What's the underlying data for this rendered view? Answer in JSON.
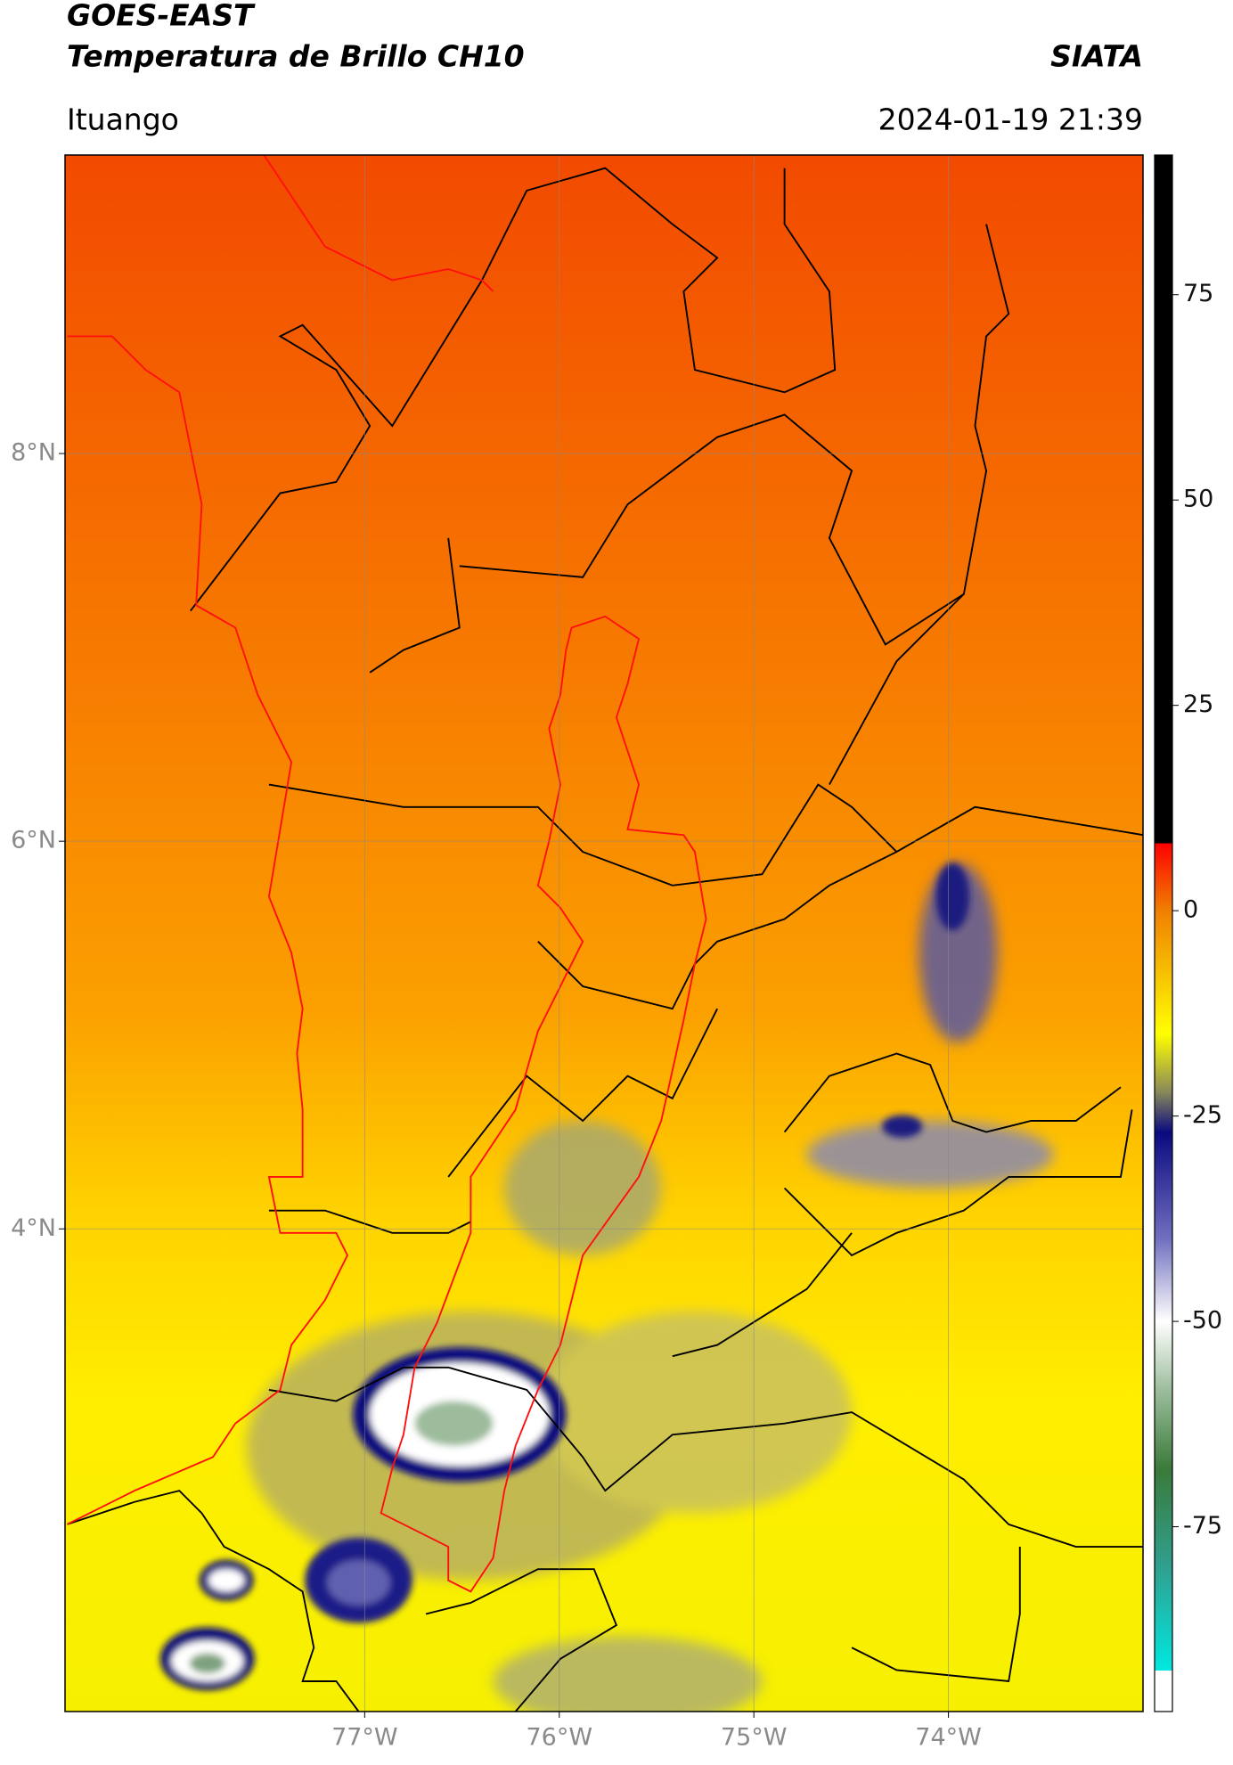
{
  "header": {
    "title": "GOES-EAST",
    "subtitle": "Temperatura de Brillo CH10",
    "source": "SIATA",
    "location": "Ituango",
    "timestamp": "2024-01-19 21:39"
  },
  "map": {
    "xlim": [
      -78.54,
      -73.0
    ],
    "ylim": [
      1.51,
      9.54
    ],
    "xticks": [
      {
        "value": -77,
        "label": "77°W"
      },
      {
        "value": -76,
        "label": "76°W"
      },
      {
        "value": -75,
        "label": "75°W"
      },
      {
        "value": -74,
        "label": "74°W"
      }
    ],
    "yticks": [
      {
        "value": 4,
        "label": "4°N"
      },
      {
        "value": 6,
        "label": "6°N"
      },
      {
        "value": 8,
        "label": "8°N"
      }
    ],
    "grid": true
  },
  "colorbar": {
    "ylim": [
      -97.5,
      92
    ],
    "yticks": [
      -75,
      -50,
      -25,
      0,
      25,
      50,
      75
    ],
    "stops": [
      {
        "value": 92,
        "color": "#000000"
      },
      {
        "value": 8.2,
        "color": "#000000"
      },
      {
        "value": 8.2,
        "color": "#ff0000"
      },
      {
        "value": 0,
        "color": "#f08000"
      },
      {
        "value": -15,
        "color": "#ffff00"
      },
      {
        "value": -22,
        "color": "#8a8a5a"
      },
      {
        "value": -27,
        "color": "#0a0a80"
      },
      {
        "value": -40,
        "color": "#7070c0"
      },
      {
        "value": -50,
        "color": "#ffffff"
      },
      {
        "value": -58,
        "color": "#a0c0a0"
      },
      {
        "value": -68,
        "color": "#3a7a3a"
      },
      {
        "value": -80,
        "color": "#30a090"
      },
      {
        "value": -92.5,
        "color": "#00e8e0"
      },
      {
        "value": -92.5,
        "color": "#ffffff"
      },
      {
        "value": -97.5,
        "color": "#ffffff"
      }
    ]
  }
}
